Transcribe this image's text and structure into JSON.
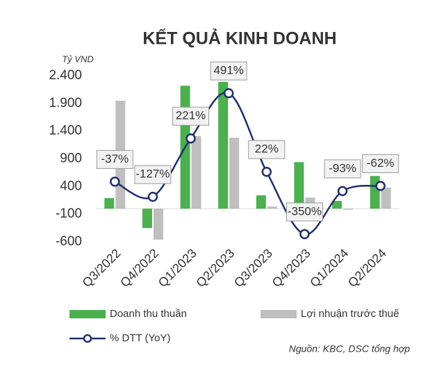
{
  "chart_data": {
    "type": "bar-line",
    "title": "KẾT QUẢ KINH DOANH",
    "y_label": "Tỷ VND",
    "source": "Nguồn: KBC, DSC tổng hợp",
    "categories": [
      "Q3/2022",
      "Q4/2022",
      "Q1/2023",
      "Q2/2023",
      "Q3/2023",
      "Q4/2023",
      "Q1/2024",
      "Q2/2024"
    ],
    "series": [
      {
        "name": "Doanh thu thuần",
        "type": "bar",
        "color": "#4caf50",
        "values": [
          190,
          -350,
          2220,
          2290,
          240,
          840,
          140,
          590
        ]
      },
      {
        "name": "Lợi nhuận trước thuế",
        "type": "bar",
        "color": "#bfbfbf",
        "values": [
          1950,
          -560,
          1310,
          1280,
          40,
          200,
          -20,
          380
        ]
      },
      {
        "name": "% DTT (YoY)",
        "type": "line",
        "axis": "y2",
        "color": "#1f2f6b",
        "values": [
          -37,
          -127,
          221,
          491,
          22,
          -350,
          -93,
          -62
        ],
        "value_labels": [
          "-37%",
          "-127%",
          "221%",
          "491%",
          "22%",
          "-350%",
          "-93%",
          "-62%"
        ]
      }
    ],
    "ylim": [
      -600,
      2400
    ],
    "yticks": [
      {
        "value": 2400,
        "label": "2.400"
      },
      {
        "value": 1900,
        "label": "1.900"
      },
      {
        "value": 1400,
        "label": "1.400"
      },
      900,
      400,
      -100,
      -600
    ],
    "y2lim": [
      -396,
      595
    ]
  }
}
